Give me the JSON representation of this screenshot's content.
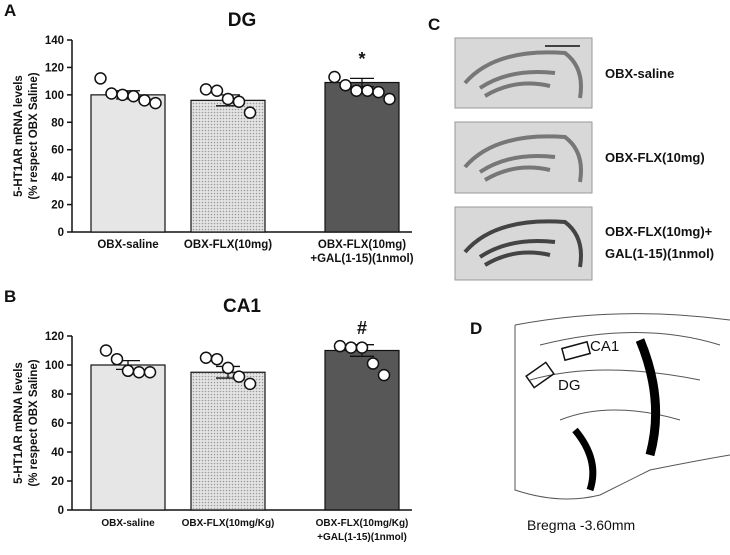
{
  "panel_labels": [
    "A",
    "B",
    "C",
    "D"
  ],
  "chart_data": [
    {
      "type": "bar",
      "title": "DG",
      "ylabel": [
        "5-HT1AR mRNA levels",
        "(% respect OBX Saline)"
      ],
      "categories": [
        "OBX-saline",
        "OBX-FLX(10mg)",
        "OBX-FLX(10mg)\n+GAL(1-15)(1nmol)"
      ],
      "values": [
        100,
        96,
        109
      ],
      "errors": [
        3,
        4,
        3
      ],
      "points": [
        [
          112,
          101,
          100,
          99,
          96,
          94
        ],
        [
          104,
          103,
          97,
          95,
          87
        ],
        [
          113,
          107,
          103,
          103,
          102,
          97
        ]
      ],
      "significance": [
        null,
        null,
        "*"
      ],
      "colors": [
        "#e6e6e6",
        "#cfcfcf",
        "#575757"
      ],
      "ylim": [
        0,
        140
      ],
      "yticks": [
        0,
        20,
        40,
        60,
        80,
        100,
        120,
        140
      ]
    },
    {
      "type": "bar",
      "title": "CA1",
      "ylabel": [
        "5-HT1AR mRNA levels",
        "(% respect OBX Saline)"
      ],
      "categories": [
        "OBX-saline",
        "OBX-FLX(10mg/Kg)",
        "OBX-FLX(10mg/Kg)\n+GAL(1-15)(1nmol)"
      ],
      "values": [
        100,
        95,
        110
      ],
      "errors": [
        3,
        4,
        4
      ],
      "points": [
        [
          110,
          104,
          96,
          95,
          95
        ],
        [
          105,
          104,
          98,
          92,
          87
        ],
        [
          113,
          112,
          112,
          101,
          93
        ]
      ],
      "significance": [
        null,
        null,
        "#"
      ],
      "colors": [
        "#e6e6e6",
        "#cfcfcf",
        "#575757"
      ],
      "ylim": [
        0,
        120
      ],
      "yticks": [
        0,
        20,
        40,
        60,
        80,
        100,
        120
      ]
    }
  ],
  "images": [
    "OBX-saline",
    "OBX-FLX(10mg)",
    "OBX-FLX(10mg)+\nGAL(1-15)(1nmol)"
  ],
  "diagram": {
    "regions": [
      "CA1",
      "DG"
    ],
    "caption": "Bregma -3.60mm"
  }
}
